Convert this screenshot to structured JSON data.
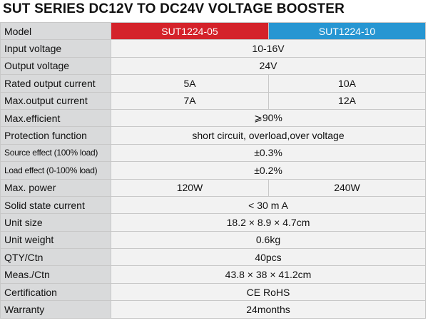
{
  "title": "SUT SERIES DC12V TO DC24V VOLTAGE BOOSTER",
  "header": {
    "label": "Model",
    "model_a": "SUT1224-05",
    "model_b": "SUT1224-10"
  },
  "colors": {
    "model_a_bg": "#d4222a",
    "model_b_bg": "#2796d2"
  },
  "rows": [
    {
      "label": "Input voltage",
      "value": "10-16V"
    },
    {
      "label": "Output voltage",
      "value": "24V"
    },
    {
      "label": "Rated output current",
      "a": "5A",
      "b": "10A"
    },
    {
      "label": "Max.output current",
      "a": "7A",
      "b": "12A"
    },
    {
      "label": "Max.efficient",
      "value": "⩾90%"
    },
    {
      "label": "Protection function",
      "value": "short circuit, overload,over voltage"
    },
    {
      "label": "Source effect (100% load)",
      "value": "±0.3%"
    },
    {
      "label": "Load effect (0-100% load)",
      "value": "±0.2%"
    },
    {
      "label": "Max. power",
      "a": "120W",
      "b": "240W"
    },
    {
      "label": "Solid state current",
      "value": "< 30 m A"
    },
    {
      "label": "Unit size",
      "value": "18.2 × 8.9 × 4.7cm"
    },
    {
      "label": "Unit weight",
      "value": "0.6kg"
    },
    {
      "label": "QTY/Ctn",
      "value": "40pcs"
    },
    {
      "label": "Meas./Ctn",
      "value": "43.8 × 38 × 41.2cm"
    },
    {
      "label": "Certification",
      "value": "CE RoHS"
    },
    {
      "label": "Warranty",
      "value": "24months"
    }
  ]
}
